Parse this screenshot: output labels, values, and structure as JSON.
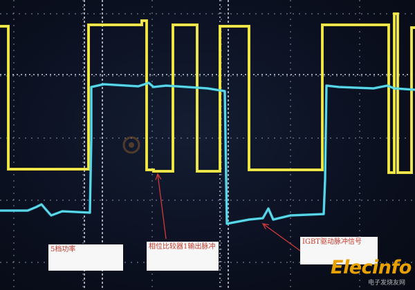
{
  "labels": {
    "power_level": "5档功率",
    "comparator_output": "相位比较器1输出脉冲",
    "igbt_drive": "IGBT驱动脉冲信号"
  },
  "watermark": {
    "brand": "Elecinfo",
    "brand_sub": "电子发烧友网"
  },
  "colors": {
    "yellow_trace": "#f2e62c",
    "cyan_trace": "#3fd2e6",
    "grid": "#8fa0b8",
    "arrow": "#d23a3a",
    "brand": "#e8a100"
  },
  "icons": [
    "red-arrow-icon",
    "watermark-logo-icon"
  ]
}
